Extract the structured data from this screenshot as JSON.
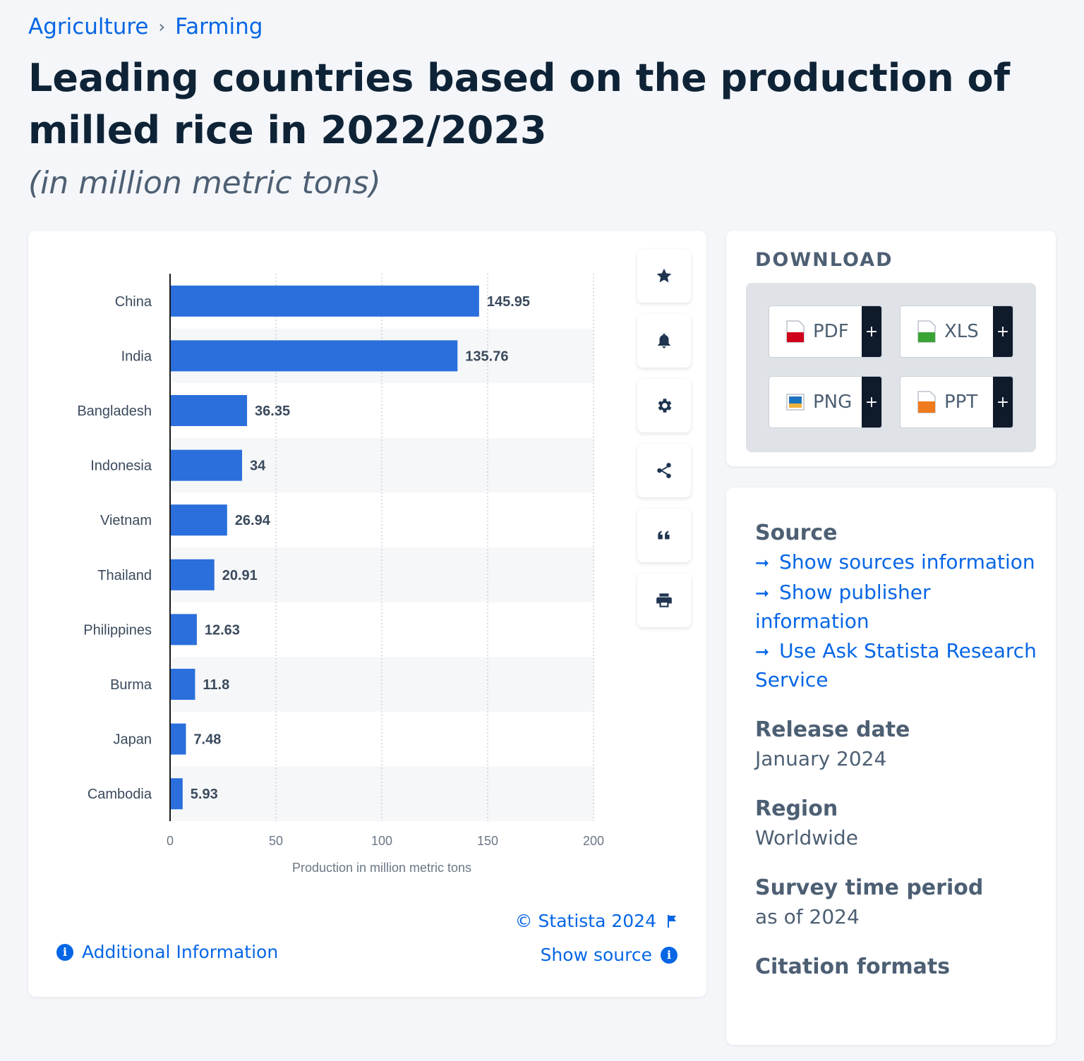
{
  "breadcrumb": {
    "items": [
      "Agriculture",
      "Farming"
    ],
    "separator": "›"
  },
  "title": "Leading countries based on the production of milled rice in 2022/2023",
  "subtitle": "(in million metric tons)",
  "chart_data": {
    "type": "bar",
    "orientation": "horizontal",
    "categories": [
      "China",
      "India",
      "Bangladesh",
      "Indonesia",
      "Vietnam",
      "Thailand",
      "Philippines",
      "Burma",
      "Japan",
      "Cambodia"
    ],
    "values": [
      145.95,
      135.76,
      36.35,
      34,
      26.94,
      20.91,
      12.63,
      11.8,
      7.48,
      5.93
    ],
    "value_labels": [
      "145.95",
      "135.76",
      "36.35",
      "34",
      "26.94",
      "20.91",
      "12.63",
      "11.8",
      "7.48",
      "5.93"
    ],
    "xlim": [
      0,
      200
    ],
    "xticks": [
      "0",
      "50",
      "100",
      "150",
      "200"
    ],
    "xlabel": "Production in million metric tons",
    "grid": "vertical dotted",
    "bar_color": "#2a6fdb"
  },
  "tools": {
    "items": [
      {
        "name": "favorite",
        "icon": "star-icon"
      },
      {
        "name": "notification",
        "icon": "bell-icon"
      },
      {
        "name": "settings",
        "icon": "gear-icon"
      },
      {
        "name": "share",
        "icon": "share-icon"
      },
      {
        "name": "cite",
        "icon": "quote-icon"
      },
      {
        "name": "print",
        "icon": "printer-icon"
      }
    ]
  },
  "chart_footer": {
    "credit": "© Statista 2024",
    "show_source": "Show source",
    "additional_info": "Additional Information"
  },
  "download": {
    "title": "DOWNLOAD",
    "buttons": [
      {
        "label": "PDF",
        "plus": "+",
        "icon": "pdf-file-icon",
        "color": "#d0021b"
      },
      {
        "label": "XLS",
        "plus": "+",
        "icon": "xls-file-icon",
        "color": "#3aa335"
      },
      {
        "label": "PNG",
        "plus": "+",
        "icon": "png-file-icon",
        "color": "#1e73be"
      },
      {
        "label": "PPT",
        "plus": "+",
        "icon": "ppt-file-icon",
        "color": "#f07b1d"
      }
    ]
  },
  "meta": {
    "source_heading": "Source",
    "source_links": [
      "Show sources information",
      "Show publisher information",
      "Use Ask Statista Research Service"
    ],
    "release_heading": "Release date",
    "release_value": "January 2024",
    "region_heading": "Region",
    "region_value": "Worldwide",
    "survey_heading": "Survey time period",
    "survey_value": "as of 2024",
    "citation_heading": "Citation formats"
  },
  "colors": {
    "link": "#0666e5",
    "title": "#0f2337",
    "muted": "#4d5f73"
  }
}
